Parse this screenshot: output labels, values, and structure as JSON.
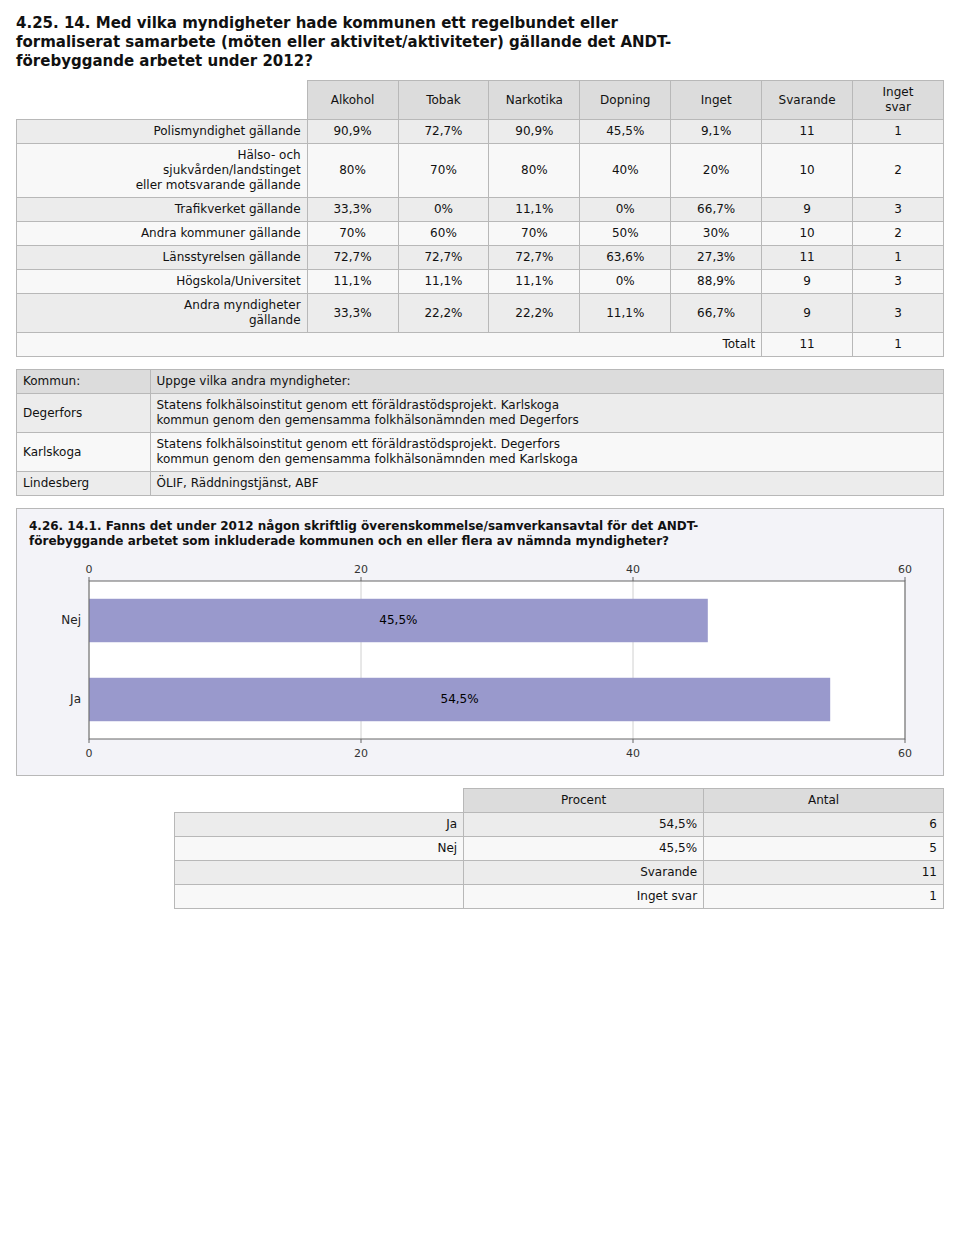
{
  "chart_data": [
    {
      "type": "table",
      "title": "4.25. 14. Med vilka myndigheter hade kommunen ett regelbundet eller\nformaliserat samarbete (möten eller aktivitet/aktiviteter) gällande det ANDT-\nförebyggande arbetet under 2012?",
      "columns": [
        "Alkohol",
        "Tobak",
        "Narkotika",
        "Dopning",
        "Inget",
        "Svarande",
        "Inget\nsvar"
      ],
      "rows": [
        [
          "Polismyndighet gällande",
          "90,9%",
          "72,7%",
          "90,9%",
          "45,5%",
          "9,1%",
          "11",
          "1"
        ],
        [
          "Hälso- och\nsjukvården/landstinget\neller motsvarande gällande",
          "80%",
          "70%",
          "80%",
          "40%",
          "20%",
          "10",
          "2"
        ],
        [
          "Trafikverket gällande",
          "33,3%",
          "0%",
          "11,1%",
          "0%",
          "66,7%",
          "9",
          "3"
        ],
        [
          "Andra kommuner gällande",
          "70%",
          "60%",
          "70%",
          "50%",
          "30%",
          "10",
          "2"
        ],
        [
          "Länsstyrelsen gällande",
          "72,7%",
          "72,7%",
          "72,7%",
          "63,6%",
          "27,3%",
          "11",
          "1"
        ],
        [
          "Högskola/Universitet",
          "11,1%",
          "11,1%",
          "11,1%",
          "0%",
          "88,9%",
          "9",
          "3"
        ],
        [
          "Andra myndigheter\ngällande",
          "33,3%",
          "22,2%",
          "22,2%",
          "11,1%",
          "66,7%",
          "9",
          "3"
        ]
      ],
      "total_row": {
        "label": "Totalt",
        "values": [
          "11",
          "1"
        ]
      }
    },
    {
      "type": "table",
      "columns": [
        "Kommun:",
        "Uppge vilka andra myndigheter:"
      ],
      "rows": [
        [
          "Degerfors",
          "Statens folkhälsoinstitut genom ett föräldrastödsprojekt. Karlskoga\nkommun genom den gemensamma folkhälsonämnden med Degerfors"
        ],
        [
          "Karlskoga",
          "Statens folkhälsoinstitut genom ett föräldrastödsprojekt. Degerfors\nkommun genom den gemensamma folkhälsonämnden med Karlskoga"
        ],
        [
          "Lindesberg",
          "ÖLIF, Räddningstjänst, ABF"
        ]
      ]
    },
    {
      "type": "bar",
      "title": "4.26. 14.1. Fanns det under 2012 någon skriftlig överenskommelse/samverkansavtal för det ANDT-\nförebyggande arbetet som inkluderade kommunen och en eller flera av nämnda myndigheter?",
      "orientation": "horizontal",
      "categories": [
        "Ja",
        "Nej"
      ],
      "values": [
        54.5,
        45.5
      ],
      "value_labels": [
        "54,5%",
        "45,5%"
      ],
      "data_labels": true,
      "color": "#9999cc",
      "xlim": [
        0,
        60
      ],
      "xticks": [
        0,
        20,
        40,
        60
      ],
      "grid": true
    },
    {
      "type": "table",
      "columns": [
        "Procent",
        "Antal"
      ],
      "rows": [
        [
          "Ja",
          "54,5%",
          "6"
        ],
        [
          "Nej",
          "45,5%",
          "5"
        ],
        [
          null,
          "Svarande",
          "11"
        ],
        [
          null,
          "Inget svar",
          "1"
        ]
      ]
    }
  ]
}
